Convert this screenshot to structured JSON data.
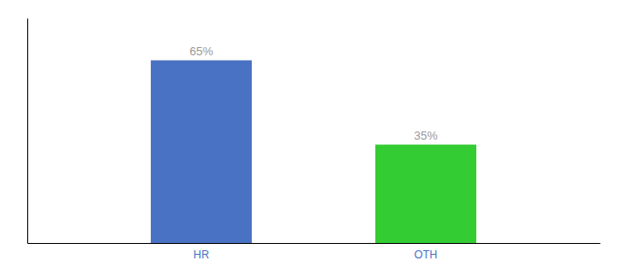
{
  "chart_data": {
    "type": "bar",
    "categories": [
      "HR",
      "OTH"
    ],
    "values": [
      65,
      35
    ],
    "value_labels": [
      "65%",
      "35%"
    ],
    "colors": [
      "#4A72C4",
      "#33CC33"
    ],
    "ylim": [
      0,
      80
    ],
    "data_labels": true,
    "tick_labels": "x"
  }
}
